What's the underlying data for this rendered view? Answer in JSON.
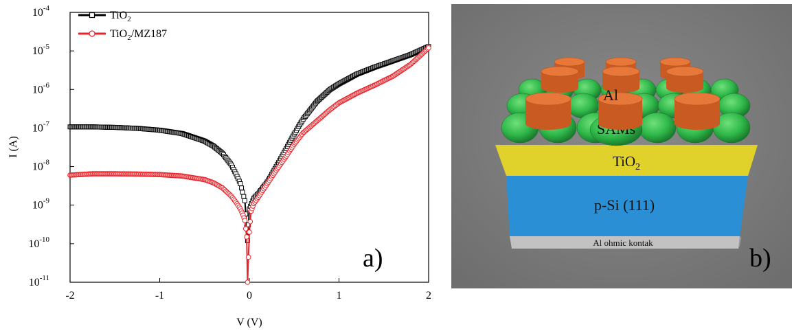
{
  "chart_data": {
    "type": "scatter",
    "panel_label": "a)",
    "xlabel": "V (V)",
    "ylabel": "I (A)",
    "xlim": [
      -2,
      2
    ],
    "ylim": [
      1e-11,
      0.0001
    ],
    "yscale": "log",
    "x_ticks": [
      "-2",
      "-1",
      "0",
      "1",
      "2"
    ],
    "y_ticks": [
      {
        "base": "10",
        "exp": "-4"
      },
      {
        "base": "10",
        "exp": "-5"
      },
      {
        "base": "10",
        "exp": "-6"
      },
      {
        "base": "10",
        "exp": "-7"
      },
      {
        "base": "10",
        "exp": "-8"
      },
      {
        "base": "10",
        "exp": "-9"
      },
      {
        "base": "10",
        "exp": "-10"
      },
      {
        "base": "10",
        "exp": "-11"
      }
    ],
    "legend_position": "top-left",
    "series": [
      {
        "name": "TiO2",
        "legend_text": {
          "main": "TiO",
          "sub": "2",
          "tail": ""
        },
        "color": "#000000",
        "marker": "square",
        "x": [
          -2.0,
          -1.75,
          -1.5,
          -1.25,
          -1.0,
          -0.75,
          -0.5,
          -0.4,
          -0.3,
          -0.2,
          -0.15,
          -0.1,
          -0.05,
          -0.02,
          0.0,
          0.05,
          0.1,
          0.2,
          0.3,
          0.4,
          0.5,
          0.6,
          0.75,
          0.9,
          1.0,
          1.2,
          1.4,
          1.6,
          1.8,
          2.0
        ],
        "y": [
          1.07e-07,
          1.07e-07,
          1.04e-07,
          9.8e-08,
          8.8e-08,
          7.2e-08,
          4.6e-08,
          3.4e-08,
          2.2e-08,
          1.1e-08,
          6.5e-09,
          3.6e-09,
          1.3e-09,
          1.2e-10,
          8e-10,
          1.5e-09,
          2e-09,
          4e-09,
          1e-08,
          2.6e-08,
          7e-08,
          1.7e-07,
          4.8e-07,
          1e-06,
          1.4e-06,
          2.5e-06,
          3.8e-06,
          5.5e-06,
          8e-06,
          1.3e-05
        ]
      },
      {
        "name": "TiO2/MZ187",
        "legend_text": {
          "main": "TiO",
          "sub": "2",
          "tail": "/MZ187"
        },
        "color": "#e8232a",
        "marker": "circle",
        "x": [
          -2.0,
          -1.75,
          -1.5,
          -1.25,
          -1.0,
          -0.75,
          -0.5,
          -0.4,
          -0.3,
          -0.2,
          -0.15,
          -0.1,
          -0.07,
          -0.05,
          -0.03,
          -0.02,
          0.0,
          0.02,
          0.05,
          0.1,
          0.2,
          0.3,
          0.4,
          0.5,
          0.6,
          0.75,
          0.9,
          1.0,
          1.2,
          1.4,
          1.6,
          1.8,
          2.0
        ],
        "y": [
          6e-09,
          6.5e-09,
          6.5e-09,
          6.4e-09,
          6.2e-09,
          5.7e-09,
          4.6e-09,
          3.8e-09,
          2.8e-09,
          1.7e-09,
          1.2e-09,
          8e-10,
          5.5e-10,
          4e-10,
          1.5e-10,
          1e-11,
          2e-10,
          7e-10,
          1.1e-09,
          1.6e-09,
          3.6e-09,
          8e-09,
          1.7e-08,
          3.8e-08,
          7.5e-08,
          1.5e-07,
          3e-07,
          4.5e-07,
          8e-07,
          1.3e-06,
          2.2e-06,
          4.5e-06,
          1.2e-05
        ]
      }
    ]
  },
  "diagram": {
    "panel_label": "b)",
    "layers": {
      "al_contact": "Al",
      "sams": "SAMs",
      "tio2": {
        "main": "TiO",
        "sub": "2"
      },
      "psi": "p-Si (111)",
      "ohmic": "Al ohmic kontak"
    },
    "colors": {
      "background": "#7a7a7a",
      "al_cylinder": "#e8773a",
      "sams": "#2fb84a",
      "tio2": "#e0d22a",
      "psi": "#2a8fd4",
      "ohmic": "#c0c0c0"
    }
  }
}
